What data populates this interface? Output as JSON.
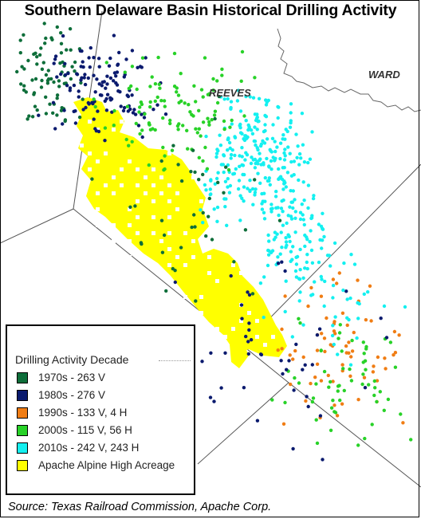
{
  "title": "Southern Delaware Basin Historical Drilling Activity",
  "map_labels": {
    "county_ward": "WARD",
    "county_reeves": "REEVES"
  },
  "legend": {
    "title": "Drilling Activity Decade",
    "items": [
      {
        "label": "1970s - 263 V",
        "color": "#0e6e3a"
      },
      {
        "label": "1980s - 276 V",
        "color": "#0a1a6e"
      },
      {
        "label": "1990s - 133 V, 4 H",
        "color": "#f07d14"
      },
      {
        "label": "2000s - 115 V, 56 H",
        "color": "#28d228"
      },
      {
        "label": "2010s - 242 V, 243 H",
        "color": "#14f0f0"
      },
      {
        "label": "Apache Alpine High Acreage",
        "color": "#ffff00"
      }
    ]
  },
  "source": "Source: Texas Railroad Commission, Apache Corp.",
  "colors": {
    "acreage": "#ffff00",
    "boundary": "#444444",
    "border_line": "#666666"
  }
}
